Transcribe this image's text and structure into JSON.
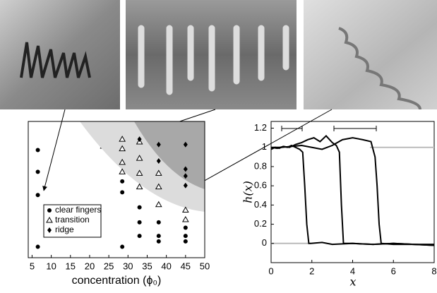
{
  "chart_data": [
    {
      "type": "scatter",
      "xlabel": "concentration (ϕ₀)",
      "xlim": [
        4,
        50
      ],
      "xticks": [
        5,
        10,
        15,
        20,
        25,
        30,
        35,
        40,
        45,
        50
      ],
      "ylim": [
        0,
        1
      ],
      "legend": "lower left",
      "series": [
        {
          "name": "clear fingers",
          "marker": "circle",
          "color": "#000000",
          "x": [
            6.5,
            6.5,
            6.5,
            6.5,
            28.5,
            28.5,
            28.5,
            33,
            33,
            33,
            38,
            38,
            38,
            45,
            45,
            45
          ],
          "values": [
            0.79,
            0.63,
            0.46,
            0.08,
            0.56,
            0.48,
            0.08,
            0.37,
            0.26,
            0.16,
            0.26,
            0.16,
            0.12,
            0.22,
            0.16,
            0.12
          ]
        },
        {
          "name": "transition",
          "marker": "triangle",
          "color": "#000000",
          "x": [
            28.5,
            28.5,
            28.5,
            28.5,
            33,
            33,
            33,
            33,
            38,
            38,
            38,
            45,
            45
          ],
          "values": [
            0.87,
            0.8,
            0.7,
            0.63,
            0.85,
            0.73,
            0.62,
            0.52,
            0.62,
            0.52,
            0.39,
            0.35,
            0.28
          ]
        },
        {
          "name": "ridge",
          "marker": "diamond",
          "color": "#000000",
          "x": [
            33,
            38,
            38,
            45,
            45,
            45,
            45
          ],
          "values": [
            0.87,
            0.83,
            0.71,
            0.83,
            0.65,
            0.6,
            0.53
          ]
        }
      ]
    },
    {
      "type": "line",
      "xlabel": "x",
      "ylabel": "h(x)",
      "xlim": [
        0,
        8
      ],
      "xticks": [
        0,
        2,
        4,
        6,
        8
      ],
      "ylim": [
        -0.2,
        1.27
      ],
      "yticks": [
        0,
        0.2,
        0.4,
        0.6,
        0.8,
        1,
        1.2
      ],
      "series": [
        {
          "color": "#000000",
          "x": [
            0,
            0.2,
            0.4,
            0.6,
            0.8,
            1.0,
            1.2,
            1.4,
            1.55,
            1.65,
            1.75,
            1.85,
            1.95,
            2.5,
            3,
            4,
            5,
            6,
            7,
            8
          ],
          "values": [
            0.98,
            1.0,
            0.99,
            1.01,
            1.0,
            1.02,
            1.0,
            0.98,
            0.95,
            0.6,
            0.2,
            0.0,
            0.0,
            0.01,
            -0.01,
            0.0,
            -0.01,
            0.0,
            -0.01,
            -0.02
          ]
        },
        {
          "color": "#000000",
          "x": [
            0,
            0.3,
            0.6,
            0.9,
            1.2,
            1.5,
            1.8,
            2.1,
            2.4,
            2.7,
            3.0,
            3.2,
            3.35,
            3.45,
            3.55,
            3.7,
            4,
            5,
            6,
            7,
            8
          ],
          "values": [
            1.0,
            0.99,
            1.01,
            1.0,
            1.03,
            1.05,
            1.08,
            1.1,
            1.06,
            1.12,
            1.05,
            1.02,
            0.95,
            0.4,
            0.0,
            0.0,
            0.0,
            -0.01,
            0.0,
            -0.01,
            -0.01
          ]
        },
        {
          "color": "#000000",
          "x": [
            0,
            0.5,
            1,
            1.5,
            2,
            2.5,
            3,
            3.5,
            4,
            4.5,
            4.9,
            5.1,
            5.2,
            5.3,
            5.4,
            6,
            7,
            8
          ],
          "values": [
            1.0,
            1.0,
            1.01,
            1.02,
            1.0,
            0.98,
            1.02,
            1.08,
            1.1,
            1.08,
            1.06,
            0.9,
            0.6,
            0.2,
            0.0,
            -0.01,
            -0.01,
            -0.02
          ]
        }
      ]
    }
  ]
}
